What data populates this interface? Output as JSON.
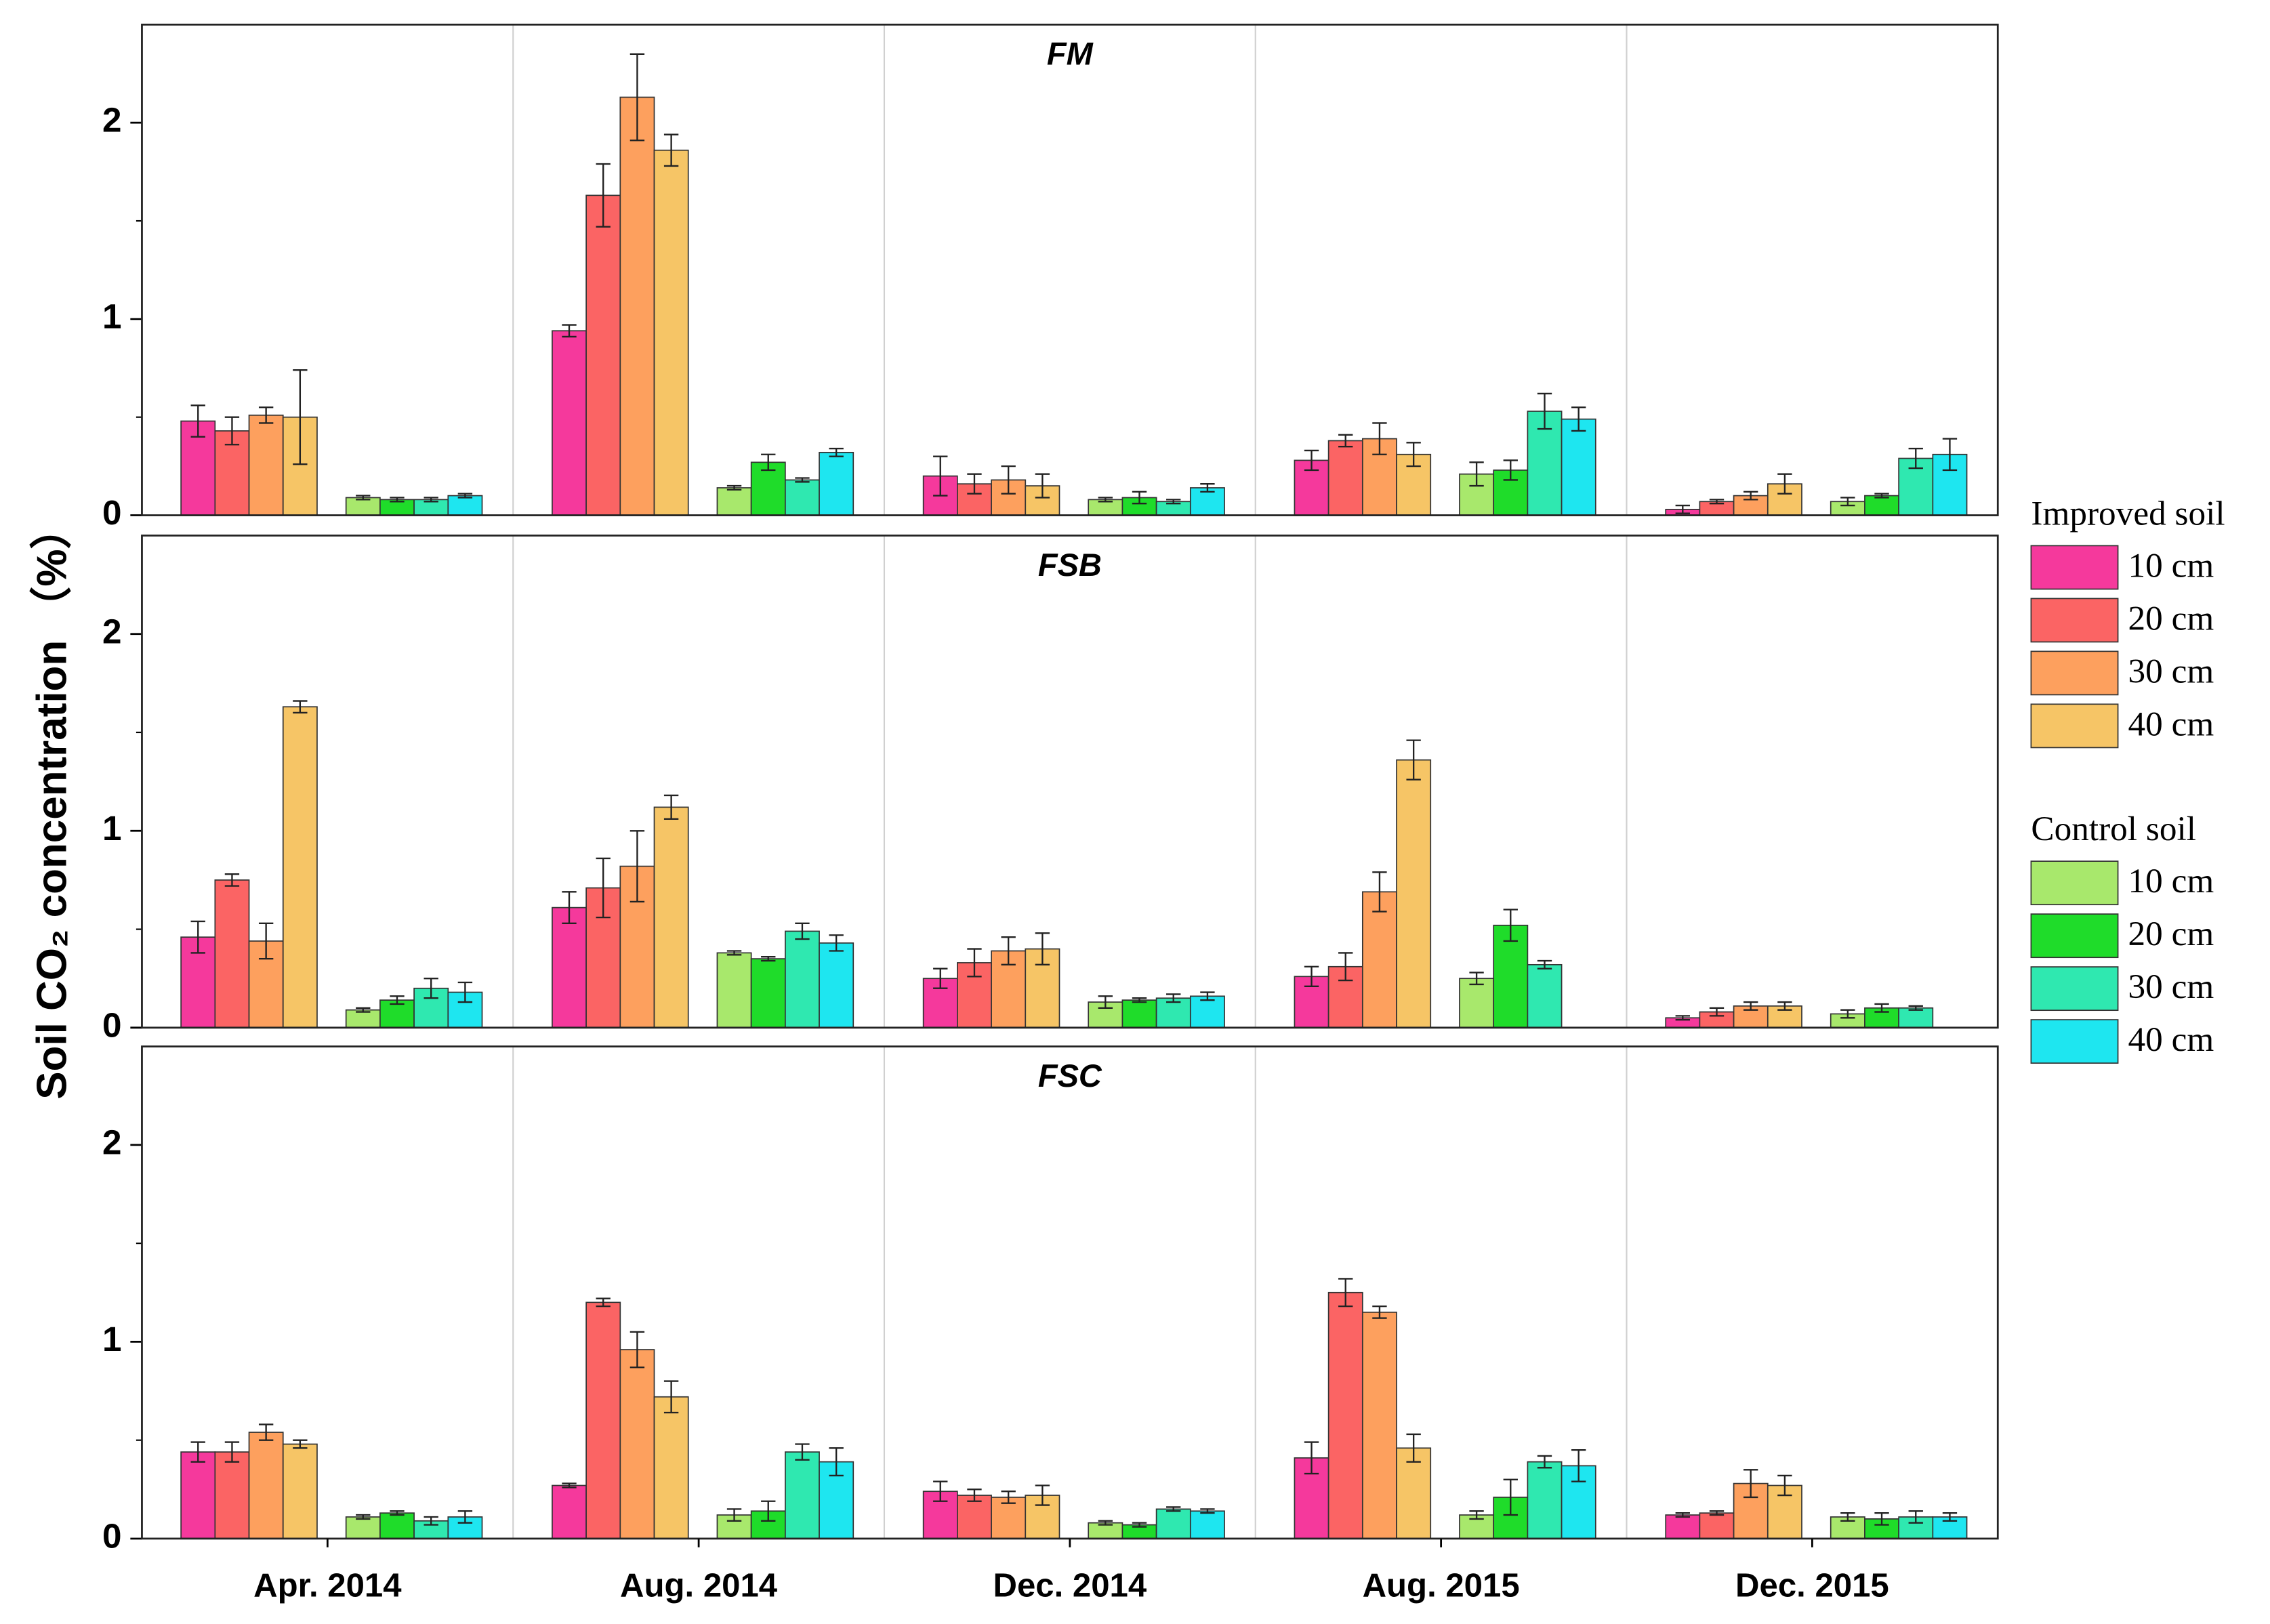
{
  "y_label": "Soil CO₂ concentration （%）",
  "categories": [
    "Apr. 2014",
    "Aug. 2014",
    "Dec. 2014",
    "Aug. 2015",
    "Dec. 2015"
  ],
  "ylim": [
    0,
    2.5
  ],
  "yticks": [
    0,
    1,
    2
  ],
  "yminor": [
    0.5,
    1.5
  ],
  "legend": [
    {
      "title": "Improved soil",
      "entries": [
        {
          "name": "10 cm",
          "color": "#f5399c"
        },
        {
          "name": "20 cm",
          "color": "#fb6464"
        },
        {
          "name": "30 cm",
          "color": "#fda05e"
        },
        {
          "name": "40 cm",
          "color": "#f6c566"
        }
      ]
    },
    {
      "title": "Control soil",
      "entries": [
        {
          "name": "10 cm",
          "color": "#a8e86c"
        },
        {
          "name": "20 cm",
          "color": "#1fdc2a"
        },
        {
          "name": "30 cm",
          "color": "#2fe8b0"
        },
        {
          "name": "40 cm",
          "color": "#1ee6f0"
        }
      ]
    }
  ],
  "chart_data": [
    {
      "type": "bar",
      "title": "FM",
      "series": [
        {
          "values": [
            0.48,
            0.94,
            0.2,
            0.28,
            0.03
          ],
          "errors": [
            0.08,
            0.03,
            0.1,
            0.05,
            0.02
          ]
        },
        {
          "values": [
            0.43,
            1.63,
            0.16,
            0.38,
            0.07
          ],
          "errors": [
            0.07,
            0.16,
            0.05,
            0.03,
            0.01
          ]
        },
        {
          "values": [
            0.51,
            2.13,
            0.18,
            0.39,
            0.1
          ],
          "errors": [
            0.04,
            0.22,
            0.07,
            0.08,
            0.02
          ]
        },
        {
          "values": [
            0.5,
            1.86,
            0.15,
            0.31,
            0.16
          ],
          "errors": [
            0.24,
            0.08,
            0.06,
            0.06,
            0.05
          ]
        },
        {
          "values": [
            0.09,
            0.14,
            0.08,
            0.21,
            0.07
          ],
          "errors": [
            0.01,
            0.01,
            0.01,
            0.06,
            0.02
          ]
        },
        {
          "values": [
            0.08,
            0.27,
            0.09,
            0.23,
            0.1
          ],
          "errors": [
            0.01,
            0.04,
            0.03,
            0.05,
            0.01
          ]
        },
        {
          "values": [
            0.08,
            0.18,
            0.07,
            0.53,
            0.29
          ],
          "errors": [
            0.01,
            0.01,
            0.01,
            0.09,
            0.05
          ]
        },
        {
          "values": [
            0.1,
            0.32,
            0.14,
            0.49,
            0.31
          ],
          "errors": [
            0.01,
            0.02,
            0.02,
            0.06,
            0.08
          ]
        }
      ]
    },
    {
      "type": "bar",
      "title": "FSB",
      "series": [
        {
          "values": [
            0.46,
            0.61,
            0.25,
            0.26,
            0.05
          ],
          "errors": [
            0.08,
            0.08,
            0.05,
            0.05,
            0.01
          ]
        },
        {
          "values": [
            0.75,
            0.71,
            0.33,
            0.31,
            0.08
          ],
          "errors": [
            0.03,
            0.15,
            0.07,
            0.07,
            0.02
          ]
        },
        {
          "values": [
            0.44,
            0.82,
            0.39,
            0.69,
            0.11
          ],
          "errors": [
            0.09,
            0.18,
            0.07,
            0.1,
            0.02
          ]
        },
        {
          "values": [
            1.63,
            1.12,
            0.4,
            1.36,
            0.11
          ],
          "errors": [
            0.03,
            0.06,
            0.08,
            0.1,
            0.02
          ]
        },
        {
          "values": [
            0.09,
            0.38,
            0.13,
            0.25,
            0.07
          ],
          "errors": [
            0.01,
            0.01,
            0.03,
            0.03,
            0.02
          ]
        },
        {
          "values": [
            0.14,
            0.35,
            0.14,
            0.52,
            0.1
          ],
          "errors": [
            0.02,
            0.01,
            0.01,
            0.08,
            0.02
          ]
        },
        {
          "values": [
            0.2,
            0.49,
            0.15,
            0.32,
            0.1
          ],
          "errors": [
            0.05,
            0.04,
            0.02,
            0.02,
            0.01
          ]
        },
        {
          "values": [
            0.18,
            0.43,
            0.16,
            null,
            null
          ],
          "errors": [
            0.05,
            0.04,
            0.02,
            null,
            null
          ]
        }
      ]
    },
    {
      "type": "bar",
      "title": "FSC",
      "series": [
        {
          "values": [
            0.44,
            0.27,
            0.24,
            0.41,
            0.12
          ],
          "errors": [
            0.05,
            0.01,
            0.05,
            0.08,
            0.01
          ]
        },
        {
          "values": [
            0.44,
            1.2,
            0.22,
            1.25,
            0.13
          ],
          "errors": [
            0.05,
            0.02,
            0.03,
            0.07,
            0.01
          ]
        },
        {
          "values": [
            0.54,
            0.96,
            0.21,
            1.15,
            0.28
          ],
          "errors": [
            0.04,
            0.09,
            0.03,
            0.03,
            0.07
          ]
        },
        {
          "values": [
            0.48,
            0.72,
            0.22,
            0.46,
            0.27
          ],
          "errors": [
            0.02,
            0.08,
            0.05,
            0.07,
            0.05
          ]
        },
        {
          "values": [
            0.11,
            0.12,
            0.08,
            0.12,
            0.11
          ],
          "errors": [
            0.01,
            0.03,
            0.01,
            0.02,
            0.02
          ]
        },
        {
          "values": [
            0.13,
            0.14,
            0.07,
            0.21,
            0.1
          ],
          "errors": [
            0.01,
            0.05,
            0.01,
            0.09,
            0.03
          ]
        },
        {
          "values": [
            0.09,
            0.44,
            0.15,
            0.39,
            0.11
          ],
          "errors": [
            0.02,
            0.04,
            0.01,
            0.03,
            0.03
          ]
        },
        {
          "values": [
            0.11,
            0.39,
            0.14,
            0.37,
            0.11
          ],
          "errors": [
            0.03,
            0.07,
            0.01,
            0.08,
            0.02
          ]
        }
      ]
    }
  ]
}
